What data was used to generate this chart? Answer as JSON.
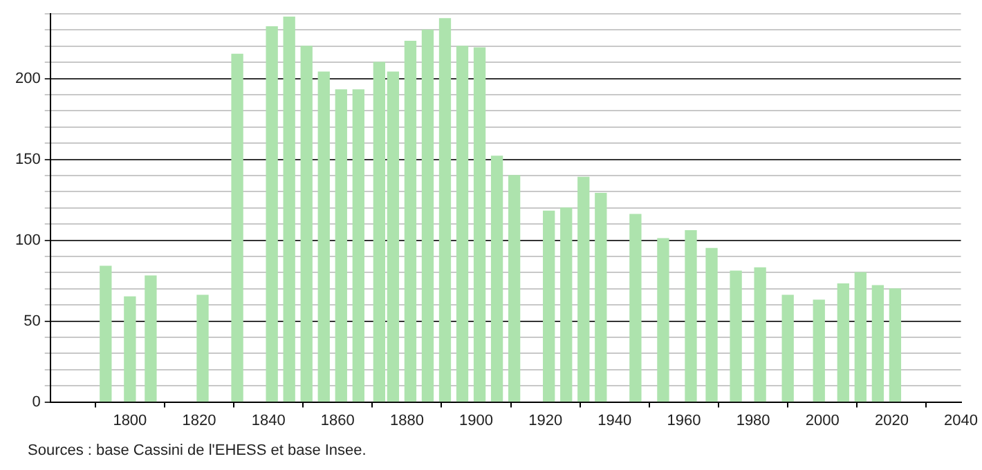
{
  "chart_data": {
    "type": "bar",
    "x": [
      1793,
      1800,
      1806,
      1821,
      1831,
      1841,
      1846,
      1851,
      1856,
      1861,
      1866,
      1872,
      1876,
      1881,
      1886,
      1891,
      1896,
      1901,
      1906,
      1911,
      1921,
      1926,
      1931,
      1936,
      1946,
      1954,
      1962,
      1968,
      1975,
      1982,
      1990,
      1999,
      2006,
      2011,
      2016,
      2021
    ],
    "values": [
      84,
      65,
      78,
      66,
      215,
      232,
      238,
      220,
      204,
      193,
      193,
      210,
      204,
      223,
      230,
      237,
      220,
      219,
      152,
      140,
      118,
      120,
      139,
      129,
      116,
      101,
      106,
      95,
      81,
      83,
      66,
      63,
      73,
      80,
      72,
      70
    ],
    "color": "#ade3ad",
    "xlim": [
      1777,
      2040
    ],
    "xticks": [
      1800,
      1820,
      1840,
      1860,
      1880,
      1900,
      1920,
      1940,
      1960,
      1980,
      2000,
      2020,
      2040
    ],
    "ylim": [
      0,
      240
    ],
    "yticks": [
      0,
      {
        "value": 10,
        "label": null
      },
      {
        "value": 20,
        "label": null
      },
      {
        "value": 30,
        "label": null
      },
      {
        "value": 40,
        "label": null
      },
      50,
      {
        "value": 60,
        "label": null
      },
      {
        "value": 70,
        "label": null
      },
      {
        "value": 80,
        "label": null
      },
      {
        "value": 90,
        "label": null
      },
      100,
      {
        "value": 110,
        "label": null
      },
      {
        "value": 120,
        "label": null
      },
      {
        "value": 130,
        "label": null
      },
      {
        "value": 140,
        "label": null
      },
      150,
      {
        "value": 160,
        "label": null
      },
      {
        "value": 170,
        "label": null
      },
      {
        "value": 180,
        "label": null
      },
      {
        "value": 190,
        "label": null
      },
      200,
      {
        "value": 210,
        "label": null
      },
      {
        "value": 220,
        "label": null
      },
      {
        "value": 230,
        "label": null
      },
      {
        "value": 240,
        "label": null
      }
    ],
    "grid": "y",
    "annotations": [
      "Sources : base Cassini de l'EHESS et base Insee."
    ]
  }
}
